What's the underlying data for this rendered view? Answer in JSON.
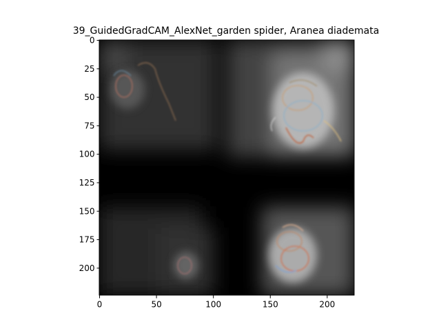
{
  "title": "39_GuidedGradCAM_AlexNet_garden spider, Aranea diademata",
  "image": {
    "description_free": true,
    "extent_x": [
      0,
      224
    ],
    "extent_y": [
      0,
      224
    ]
  },
  "axes": {
    "x_ticks": [
      {
        "value": 0,
        "label": "0"
      },
      {
        "value": 50,
        "label": "50"
      },
      {
        "value": 100,
        "label": "100"
      },
      {
        "value": 150,
        "label": "150"
      },
      {
        "value": 200,
        "label": "200"
      }
    ],
    "y_ticks": [
      {
        "value": 0,
        "label": "0"
      },
      {
        "value": 25,
        "label": "25"
      },
      {
        "value": 50,
        "label": "50"
      },
      {
        "value": 75,
        "label": "75"
      },
      {
        "value": 100,
        "label": "100"
      },
      {
        "value": 125,
        "label": "125"
      },
      {
        "value": 150,
        "label": "150"
      },
      {
        "value": 175,
        "label": "175"
      },
      {
        "value": 200,
        "label": "200"
      }
    ]
  },
  "colors": {
    "background": "#000000",
    "frame": "#000000",
    "highlight": "#cfcfcf"
  }
}
